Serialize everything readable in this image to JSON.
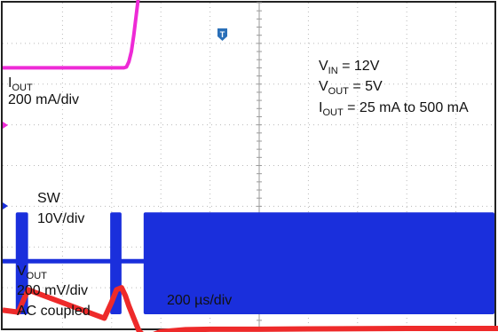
{
  "chart_data": {
    "type": "line",
    "title": "",
    "grid": true,
    "x_axis": {
      "scale_label": "200 µs/div",
      "divisions": 10
    },
    "y_axis": {
      "divisions": 8
    },
    "trigger_marker": "T",
    "conditions": [
      {
        "main": "V",
        "sub": "IN",
        "rest": " = 12V"
      },
      {
        "main": "V",
        "sub": "OUT",
        "rest": " = 5V"
      },
      {
        "main": "I",
        "sub": "OUT",
        "rest": " = 25 mA to 500 mA"
      }
    ],
    "series": [
      {
        "name_main": "I",
        "name_sub": "OUT",
        "scale": "200 mA/div",
        "color": "#ee2ad6",
        "x": [
          0,
          2.25,
          2.3,
          2.35,
          2.4,
          2.45,
          2.5,
          2.55,
          2.6,
          2.65,
          2.7,
          2.8,
          3.0,
          3.5,
          4.0,
          6.0,
          8.0,
          10.0
        ],
        "y": [
          2.4,
          2.4,
          2.42,
          2.55,
          2.8,
          3.2,
          3.7,
          4.2,
          4.55,
          4.75,
          4.82,
          4.85,
          4.87,
          4.88,
          4.89,
          4.89,
          4.9,
          4.9
        ]
      },
      {
        "name_main": "SW",
        "name_sub": "",
        "scale": "10V/div",
        "color": "#1a2fdc",
        "baseline_div": -2.35,
        "high_div": -1.15,
        "low_div": -3.65,
        "bursts": [
          [
            0.05,
            0.3
          ],
          [
            1.97,
            2.2
          ],
          [
            2.65,
            10.0
          ]
        ]
      },
      {
        "name_main": "V",
        "name_sub": "OUT",
        "scale": "200 mV/div",
        "coupling": "AC coupled",
        "color": "#ee2a2a",
        "x": [
          0,
          0.1,
          0.3,
          1.85,
          2.0,
          2.1,
          2.2,
          2.28,
          2.35,
          2.45,
          2.55,
          2.7,
          2.85,
          3.0,
          3.5,
          4.0,
          5.0,
          6.0,
          8.0,
          10.0
        ],
        "y": [
          -3.55,
          -3.6,
          -3.05,
          -3.75,
          -3.35,
          -3.05,
          -3.0,
          -3.2,
          -3.45,
          -3.75,
          -4.05,
          -4.25,
          -4.15,
          -4.08,
          -4.03,
          -4.02,
          -4.02,
          -4.01,
          -4.0,
          -4.0
        ]
      }
    ]
  }
}
